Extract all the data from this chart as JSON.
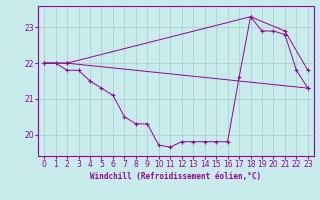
{
  "xlabel": "Windchill (Refroidissement éolien,°C)",
  "bg_color": "#c8ecec",
  "line_color": "#990099",
  "grid_color": "#aacccc",
  "ylim": [
    19.4,
    23.6
  ],
  "xlim": [
    -0.5,
    23.5
  ],
  "yticks": [
    20,
    21,
    22,
    23
  ],
  "xticks": [
    0,
    1,
    2,
    3,
    4,
    5,
    6,
    7,
    8,
    9,
    10,
    11,
    12,
    13,
    14,
    15,
    16,
    17,
    18,
    19,
    20,
    21,
    22,
    23
  ],
  "line1_x": [
    0,
    1,
    2,
    3,
    4,
    5,
    6,
    7,
    8,
    9,
    10,
    11,
    12,
    13,
    14,
    15,
    16,
    17,
    18,
    19,
    20,
    21,
    22,
    23
  ],
  "line1_y": [
    22.0,
    22.0,
    21.8,
    21.8,
    21.5,
    21.3,
    21.1,
    20.5,
    20.3,
    20.3,
    19.7,
    19.65,
    19.8,
    19.8,
    19.8,
    19.8,
    19.8,
    21.6,
    23.3,
    22.9,
    22.9,
    22.8,
    21.8,
    21.3
  ],
  "line2_x": [
    0,
    2,
    18,
    21,
    23
  ],
  "line2_y": [
    22.0,
    22.0,
    23.3,
    22.9,
    21.8
  ],
  "line3_x": [
    0,
    2,
    23
  ],
  "line3_y": [
    22.0,
    22.0,
    21.3
  ]
}
